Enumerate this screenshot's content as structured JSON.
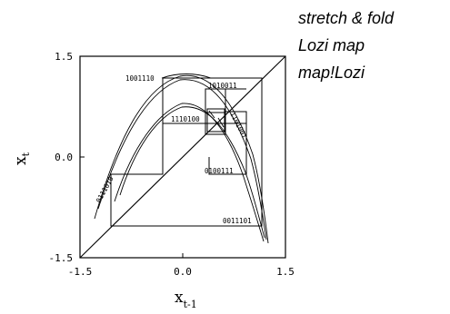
{
  "margin_notes": [
    "stretch & fold",
    "Lozi map",
    "map!Lozi"
  ],
  "axes": {
    "ylabel_main": "x",
    "ylabel_sub": "t",
    "xlabel_main": "x",
    "xlabel_sub": "t-1",
    "xticks": [
      "-1.5",
      "0.0",
      "1.5"
    ],
    "yticks": [
      "1.5",
      "0.0",
      "-1.5"
    ]
  },
  "orbit_labels": [
    "1001110",
    "1010011",
    "1110100",
    "1101001",
    "0111010",
    "0100111",
    "0011101"
  ],
  "colors": {
    "ink": "#000000",
    "background": "#ffffff"
  }
}
